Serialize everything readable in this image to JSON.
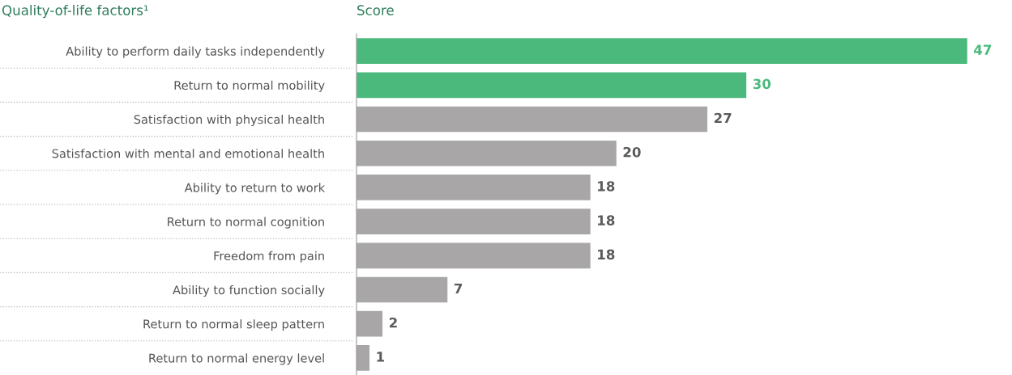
{
  "chart_data": {
    "type": "bar",
    "orientation": "horizontal",
    "ylabel": "Quality-of-life factors¹",
    "xlabel": "Score",
    "categories": [
      "Ability to perform daily tasks independently",
      "Return to normal mobility",
      "Satisfaction with physical health",
      "Satisfaction with mental and emotional health",
      "Ability to return to work",
      "Return to normal cognition",
      "Freedom from pain",
      "Ability to function socially",
      "Return to normal sleep pattern",
      "Return to normal energy level"
    ],
    "values": [
      47,
      30,
      27,
      20,
      18,
      18,
      18,
      7,
      2,
      1
    ],
    "colors": [
      "#4cb97c",
      "#4cb97c",
      "#a8a6a7",
      "#a8a6a7",
      "#a8a6a7",
      "#a8a6a7",
      "#a8a6a7",
      "#a8a6a7",
      "#a8a6a7",
      "#a8a6a7"
    ],
    "data_labels": true,
    "grid": false,
    "legend": false
  }
}
